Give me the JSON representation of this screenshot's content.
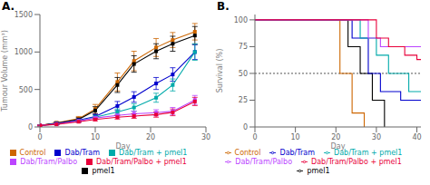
{
  "chart_data": [
    {
      "type": "line",
      "title": "A.",
      "xlabel": "Day",
      "ylabel": "Tumour Volume (mm³)",
      "xlim": [
        0,
        30
      ],
      "ylim": [
        0,
        1500
      ],
      "xticks": [
        0,
        10,
        20,
        30
      ],
      "yticks": [
        0,
        500,
        1000,
        1500
      ],
      "marker": "square",
      "legend": "bottom",
      "series": [
        {
          "name": "Control",
          "color": "#cd6600",
          "x": [
            0,
            3,
            7,
            10,
            14,
            17,
            21,
            24,
            28
          ],
          "values": [
            20,
            55,
            110,
            240,
            600,
            880,
            1060,
            1160,
            1270
          ],
          "yerr": [
            5,
            15,
            30,
            60,
            120,
            130,
            120,
            100,
            110
          ]
        },
        {
          "name": "pmel1",
          "color": "#000000",
          "x": [
            0,
            3,
            7,
            10,
            14,
            17,
            21,
            24,
            28
          ],
          "values": [
            20,
            50,
            100,
            220,
            560,
            840,
            1010,
            1110,
            1220
          ],
          "yerr": [
            5,
            15,
            25,
            50,
            100,
            110,
            100,
            100,
            120
          ]
        },
        {
          "name": "Dab/Tram",
          "color": "#0000cd",
          "x": [
            0,
            3,
            7,
            10,
            14,
            17,
            21,
            24,
            28
          ],
          "values": [
            20,
            45,
            90,
            140,
            280,
            400,
            580,
            700,
            1000
          ],
          "yerr": [
            5,
            10,
            20,
            30,
            60,
            70,
            80,
            90,
            100
          ]
        },
        {
          "name": "Dab/Tram + pmel1",
          "color": "#00aaaa",
          "x": [
            0,
            3,
            7,
            10,
            14,
            17,
            21,
            24,
            28
          ],
          "values": [
            20,
            40,
            80,
            130,
            200,
            260,
            390,
            560,
            1000
          ],
          "yerr": [
            5,
            10,
            15,
            25,
            40,
            50,
            60,
            80,
            110
          ]
        },
        {
          "name": "Dab/Tram/Palbo",
          "color": "#bb44ff",
          "x": [
            0,
            3,
            7,
            10,
            14,
            17,
            21,
            24,
            28
          ],
          "values": [
            20,
            40,
            80,
            120,
            155,
            175,
            190,
            210,
            360
          ],
          "yerr": [
            5,
            10,
            15,
            20,
            30,
            35,
            40,
            50,
            60
          ]
        },
        {
          "name": "Dab/Tram/Palbo + pmel1",
          "color": "#e8003a",
          "x": [
            0,
            3,
            7,
            10,
            14,
            17,
            21,
            24,
            28
          ],
          "values": [
            20,
            35,
            70,
            100,
            130,
            145,
            165,
            195,
            340
          ],
          "yerr": [
            5,
            8,
            12,
            18,
            25,
            30,
            35,
            45,
            55
          ]
        }
      ]
    },
    {
      "type": "step",
      "title": "B.",
      "xlabel": "Day",
      "ylabel": "Survival (%)",
      "xlim": [
        0,
        41
      ],
      "ylim": [
        0,
        105
      ],
      "xticks": [
        0,
        10,
        20,
        30,
        40
      ],
      "yticks": [
        0,
        25,
        50,
        75,
        100
      ],
      "legend": "bottom",
      "hline": {
        "y": 50,
        "color": "#555555",
        "line_style": "dotted"
      },
      "series": [
        {
          "name": "Control",
          "color": "#cd6600",
          "x": [
            0,
            20,
            21,
            23,
            24,
            26,
            27
          ],
          "values": [
            100,
            100,
            50,
            50,
            13,
            13,
            0
          ]
        },
        {
          "name": "pmel1",
          "color": "#000000",
          "x": [
            0,
            22,
            23,
            25,
            26,
            28,
            29,
            31,
            32
          ],
          "values": [
            100,
            100,
            75,
            75,
            50,
            50,
            25,
            25,
            0
          ]
        },
        {
          "name": "Dab/Tram",
          "color": "#0000cd",
          "x": [
            0,
            23,
            24,
            27,
            28,
            30,
            31,
            35,
            36,
            41
          ],
          "values": [
            100,
            100,
            83,
            83,
            50,
            50,
            33,
            33,
            25,
            25
          ]
        },
        {
          "name": "Dab/Tram + pmel1",
          "color": "#00aaaa",
          "x": [
            0,
            25,
            26,
            29,
            30,
            32,
            33,
            37,
            38,
            41
          ],
          "values": [
            100,
            100,
            83,
            83,
            67,
            67,
            50,
            50,
            33,
            33
          ]
        },
        {
          "name": "Dab/Tram/Palbo",
          "color": "#bb44ff",
          "x": [
            0,
            27,
            28,
            30,
            31,
            34,
            35,
            41
          ],
          "values": [
            100,
            100,
            83,
            83,
            75,
            75,
            75,
            75
          ]
        },
        {
          "name": "Dab/Tram/Palbo + pmel1",
          "color": "#e8003a",
          "x": [
            0,
            29,
            30,
            32,
            33,
            36,
            37,
            39,
            40,
            41
          ],
          "values": [
            100,
            100,
            83,
            83,
            75,
            75,
            67,
            67,
            63,
            63
          ]
        }
      ]
    }
  ]
}
